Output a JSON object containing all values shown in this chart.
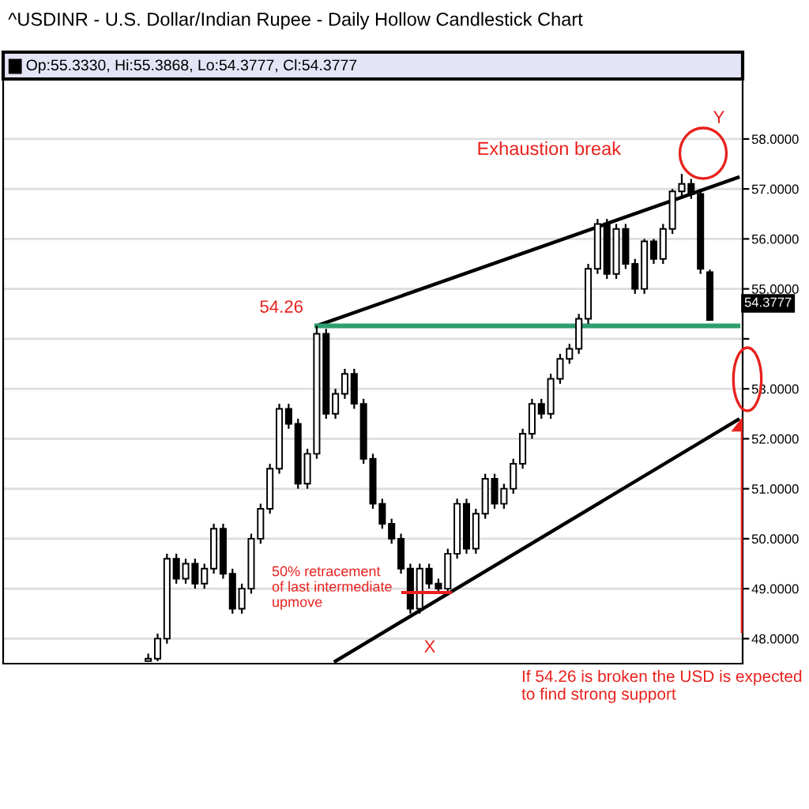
{
  "chart_data": {
    "type": "candlestick",
    "title": "^USDINR - U.S. Dollar/Indian Rupee - Daily Hollow Candlestick Chart",
    "subtitle": "Op:55.3330, Hi:55.3868, Lo:54.3777, Cl:54.3777",
    "categories": [
      null,
      null,
      null,
      null,
      null,
      null,
      null,
      null,
      null,
      null,
      null,
      null,
      null,
      null,
      null,
      null,
      null,
      null,
      null,
      null,
      null,
      null,
      null,
      null,
      null,
      null,
      null,
      null,
      null,
      null,
      null,
      null,
      null,
      null,
      null,
      null,
      null,
      null,
      null,
      null,
      null,
      null,
      null,
      null,
      null,
      null,
      null,
      null,
      null,
      null,
      null,
      null,
      null,
      null,
      null,
      null,
      null,
      null,
      null,
      null,
      null,
      null,
      null,
      null,
      null,
      null,
      null,
      null,
      null,
      null,
      null,
      null,
      null,
      null,
      null,
      null,
      null,
      null,
      null
    ],
    "ohlc": [
      null,
      null,
      null,
      null,
      null,
      null,
      null,
      null,
      null,
      null,
      null,
      null,
      null,
      null,
      null,
      [
        47.55,
        47.7,
        47.55,
        47.6
      ],
      [
        47.6,
        48.1,
        47.55,
        48.0
      ],
      [
        48.0,
        49.7,
        47.9,
        49.6
      ],
      [
        49.6,
        49.7,
        49.1,
        49.2
      ],
      [
        49.2,
        49.6,
        49.1,
        49.5
      ],
      [
        49.5,
        49.6,
        49.0,
        49.1
      ],
      [
        49.1,
        49.5,
        49.0,
        49.4
      ],
      [
        49.4,
        50.3,
        49.3,
        50.2
      ],
      [
        50.2,
        50.3,
        49.2,
        49.3
      ],
      [
        49.3,
        49.4,
        48.5,
        48.6
      ],
      [
        48.6,
        49.1,
        48.5,
        49.0
      ],
      [
        49.0,
        50.1,
        48.9,
        50.0
      ],
      [
        50.0,
        50.7,
        49.9,
        50.6
      ],
      [
        50.6,
        51.5,
        50.5,
        51.4
      ],
      [
        51.4,
        52.7,
        51.3,
        52.6
      ],
      [
        52.6,
        52.7,
        52.2,
        52.3
      ],
      [
        52.3,
        52.4,
        51.0,
        51.1
      ],
      [
        51.1,
        51.8,
        51.0,
        51.7
      ],
      [
        51.7,
        54.26,
        51.6,
        54.1
      ],
      [
        54.1,
        54.2,
        52.4,
        52.5
      ],
      [
        52.5,
        53.0,
        52.4,
        52.9
      ],
      [
        52.9,
        53.4,
        52.8,
        53.3
      ],
      [
        53.3,
        53.4,
        52.6,
        52.7
      ],
      [
        52.7,
        52.8,
        51.5,
        51.6
      ],
      [
        51.6,
        51.7,
        50.6,
        50.7
      ],
      [
        50.7,
        50.8,
        50.2,
        50.3
      ],
      [
        50.3,
        50.4,
        49.9,
        50.0
      ],
      [
        50.0,
        50.1,
        49.3,
        49.4
      ],
      [
        49.4,
        49.5,
        48.5,
        48.6
      ],
      [
        48.6,
        49.5,
        48.5,
        49.4
      ],
      [
        49.4,
        49.5,
        49.0,
        49.1
      ],
      [
        49.1,
        49.2,
        48.9,
        49.0
      ],
      [
        49.0,
        49.8,
        48.9,
        49.7
      ],
      [
        49.7,
        50.8,
        49.6,
        50.7
      ],
      [
        50.7,
        50.8,
        49.7,
        49.8
      ],
      [
        49.8,
        50.6,
        49.7,
        50.5
      ],
      [
        50.5,
        51.3,
        50.4,
        51.2
      ],
      [
        51.2,
        51.3,
        50.6,
        50.7
      ],
      [
        50.7,
        51.1,
        50.6,
        51.0
      ],
      [
        51.0,
        51.6,
        50.9,
        51.5
      ],
      [
        51.5,
        52.2,
        51.4,
        52.1
      ],
      [
        52.1,
        52.8,
        52.0,
        52.7
      ],
      [
        52.7,
        52.8,
        52.4,
        52.5
      ],
      [
        52.5,
        53.3,
        52.4,
        53.2
      ],
      [
        53.2,
        53.7,
        53.1,
        53.6
      ],
      [
        53.6,
        53.9,
        53.5,
        53.8
      ],
      [
        53.8,
        54.5,
        53.7,
        54.4
      ],
      [
        54.4,
        55.5,
        54.3,
        55.4
      ],
      [
        55.4,
        56.4,
        55.3,
        56.3
      ],
      [
        56.3,
        56.4,
        55.2,
        55.3
      ],
      [
        55.3,
        56.3,
        55.2,
        56.2
      ],
      [
        56.2,
        56.3,
        55.4,
        55.5
      ],
      [
        55.5,
        55.6,
        54.9,
        55.0
      ],
      [
        55.0,
        56.0,
        54.9,
        55.95
      ],
      [
        55.95,
        56.0,
        55.5,
        55.6
      ],
      [
        55.6,
        56.3,
        55.5,
        56.2
      ],
      [
        56.2,
        57.0,
        56.1,
        56.95
      ],
      [
        56.95,
        57.3,
        56.8,
        57.1
      ],
      [
        57.1,
        57.2,
        56.8,
        56.9
      ],
      [
        56.9,
        57.0,
        55.3,
        55.4
      ],
      [
        55.333,
        55.3868,
        54.3777,
        54.3777
      ],
      null,
      null,
      null
    ],
    "color": "#000000",
    "series": [
      {
        "type": "line",
        "color": "#000000",
        "values": [
          null,
          null,
          null,
          null,
          null,
          null,
          null,
          null,
          null,
          null,
          null,
          null,
          null,
          null,
          null,
          null,
          null,
          null,
          null,
          null,
          null,
          null,
          null,
          null,
          null,
          null,
          null,
          null,
          null,
          null,
          null,
          null,
          null,
          54.26,
          null,
          null,
          null,
          null,
          null,
          null,
          null,
          null,
          null,
          null,
          null,
          null,
          null,
          null,
          null,
          null,
          null,
          null,
          null,
          null,
          null,
          null,
          null,
          null,
          null,
          null,
          null,
          null,
          null,
          null,
          null,
          null,
          null,
          null,
          null,
          null,
          null,
          null,
          null,
          null,
          null,
          null,
          null,
          null,
          57.23
        ]
      },
      {
        "type": "line",
        "color": "#2e9e6e",
        "values": [
          null,
          null,
          null,
          null,
          null,
          null,
          null,
          null,
          null,
          null,
          null,
          null,
          null,
          null,
          null,
          null,
          null,
          null,
          null,
          null,
          null,
          null,
          null,
          null,
          null,
          null,
          null,
          null,
          null,
          null,
          null,
          null,
          null,
          54.26,
          null,
          null,
          null,
          null,
          null,
          null,
          null,
          null,
          null,
          null,
          null,
          null,
          null,
          null,
          null,
          null,
          null,
          null,
          null,
          null,
          null,
          null,
          null,
          null,
          null,
          null,
          null,
          null,
          null,
          null,
          null,
          null,
          null,
          null,
          null,
          null,
          null,
          null,
          null,
          null,
          null,
          null,
          null,
          null,
          54.26
        ]
      },
      {
        "type": "line",
        "color": "#000000",
        "values": [
          null,
          null,
          null,
          null,
          null,
          null,
          null,
          null,
          null,
          null,
          null,
          null,
          null,
          null,
          null,
          null,
          null,
          null,
          null,
          null,
          null,
          null,
          null,
          null,
          null,
          null,
          null,
          null,
          null,
          null,
          null,
          null,
          null,
          null,
          null,
          47.55,
          null,
          null,
          null,
          null,
          null,
          null,
          null,
          null,
          null,
          null,
          null,
          null,
          null,
          null,
          null,
          null,
          null,
          null,
          null,
          null,
          null,
          null,
          null,
          null,
          null,
          null,
          null,
          null,
          null,
          null,
          null,
          null,
          null,
          null,
          null,
          null,
          null,
          null,
          null,
          null,
          null,
          null,
          52.38
        ]
      }
    ],
    "ylim": [
      47.5,
      59.2
    ],
    "yticks": [
      {
        "value": 48,
        "label": "48.0000"
      },
      {
        "value": 49,
        "label": "49.0000"
      },
      {
        "value": 50,
        "label": "50.0000"
      },
      {
        "value": 51,
        "label": "51.0000"
      },
      {
        "value": 52,
        "label": "52.0000"
      },
      {
        "value": 53,
        "label": "53.0000"
      },
      {
        "value": 54,
        "label": null
      },
      {
        "value": 55,
        "label": "55.0000"
      },
      {
        "value": 56,
        "label": "56.0000"
      },
      {
        "value": 57,
        "label": "57.0000"
      },
      {
        "value": 58,
        "label": "58.0000"
      }
    ],
    "grid": "y",
    "annotations": [
      "54.26",
      "Exhaustion break",
      "Y",
      "X",
      "50% retracement\nof last intermediate\nupmove",
      "If 54.26 is broken the USD is expected to find strong support",
      "54.3777"
    ]
  }
}
